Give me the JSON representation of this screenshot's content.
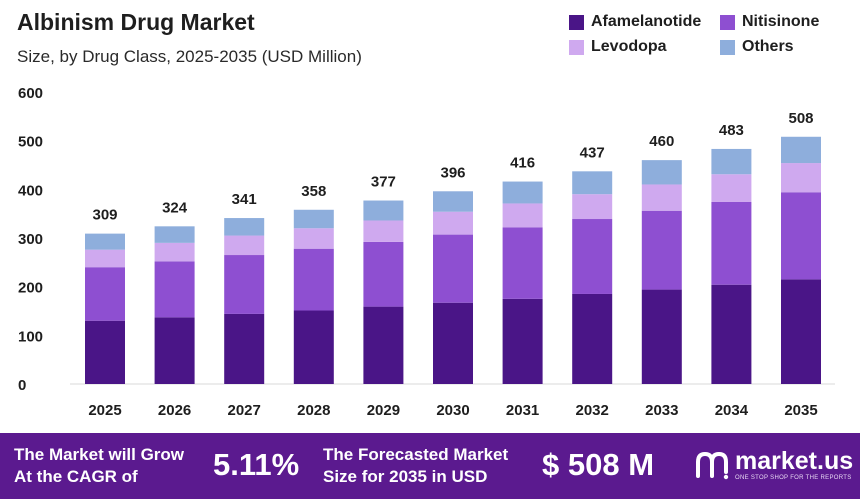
{
  "header": {
    "title": "Albinism Drug Market",
    "subtitle": "Size, by Drug Class, 2025-2035 (USD Million)"
  },
  "legend": {
    "items": [
      {
        "label": "Afamelanotide",
        "color": "#4a1587"
      },
      {
        "label": "Nitisinone",
        "color": "#8e4fd1"
      },
      {
        "label": "Levodopa",
        "color": "#cfa9ef"
      },
      {
        "label": "Others",
        "color": "#8eaedc"
      }
    ]
  },
  "chart_data": {
    "type": "bar",
    "stacked": true,
    "title": "Albinism Drug Market",
    "subtitle": "Size, by Drug Class, 2025-2035 (USD Million)",
    "categories": [
      "2025",
      "2026",
      "2027",
      "2028",
      "2029",
      "2030",
      "2031",
      "2032",
      "2033",
      "2034",
      "2035"
    ],
    "series": [
      {
        "name": "Afamelanotide",
        "color": "#4a1587",
        "values": [
          130,
          137,
          144,
          151,
          159,
          167,
          175,
          185,
          194,
          204,
          215
        ]
      },
      {
        "name": "Nitisinone",
        "color": "#8e4fd1",
        "values": [
          110,
          115,
          121,
          127,
          133,
          140,
          147,
          154,
          162,
          170,
          179
        ]
      },
      {
        "name": "Levodopa",
        "color": "#cfa9ef",
        "values": [
          36,
          38,
          40,
          42,
          44,
          47,
          49,
          51,
          54,
          57,
          60
        ]
      },
      {
        "name": "Others",
        "color": "#8eaedc",
        "values": [
          33,
          34,
          36,
          38,
          41,
          42,
          45,
          47,
          50,
          52,
          54
        ]
      }
    ],
    "totals": [
      309,
      324,
      341,
      358,
      377,
      396,
      416,
      437,
      460,
      483,
      508
    ],
    "ylim": [
      0,
      600
    ],
    "yticks": [
      0,
      100,
      200,
      300,
      400,
      500,
      600
    ],
    "xlabel": "",
    "ylabel": "",
    "grid": false,
    "legend_position": "top-right"
  },
  "footer": {
    "cagr_label_line1": "The Market will Grow",
    "cagr_label_line2": "At the CAGR of",
    "cagr_value": "5.11%",
    "forecast_label_line1": "The Forecasted Market",
    "forecast_label_line2": "Size for 2035 in USD",
    "forecast_value": "$ 508 M",
    "brand_name": "market.us",
    "brand_tagline": "ONE STOP SHOP FOR THE REPORTS",
    "brand_icon": "market-us-logo-icon"
  }
}
